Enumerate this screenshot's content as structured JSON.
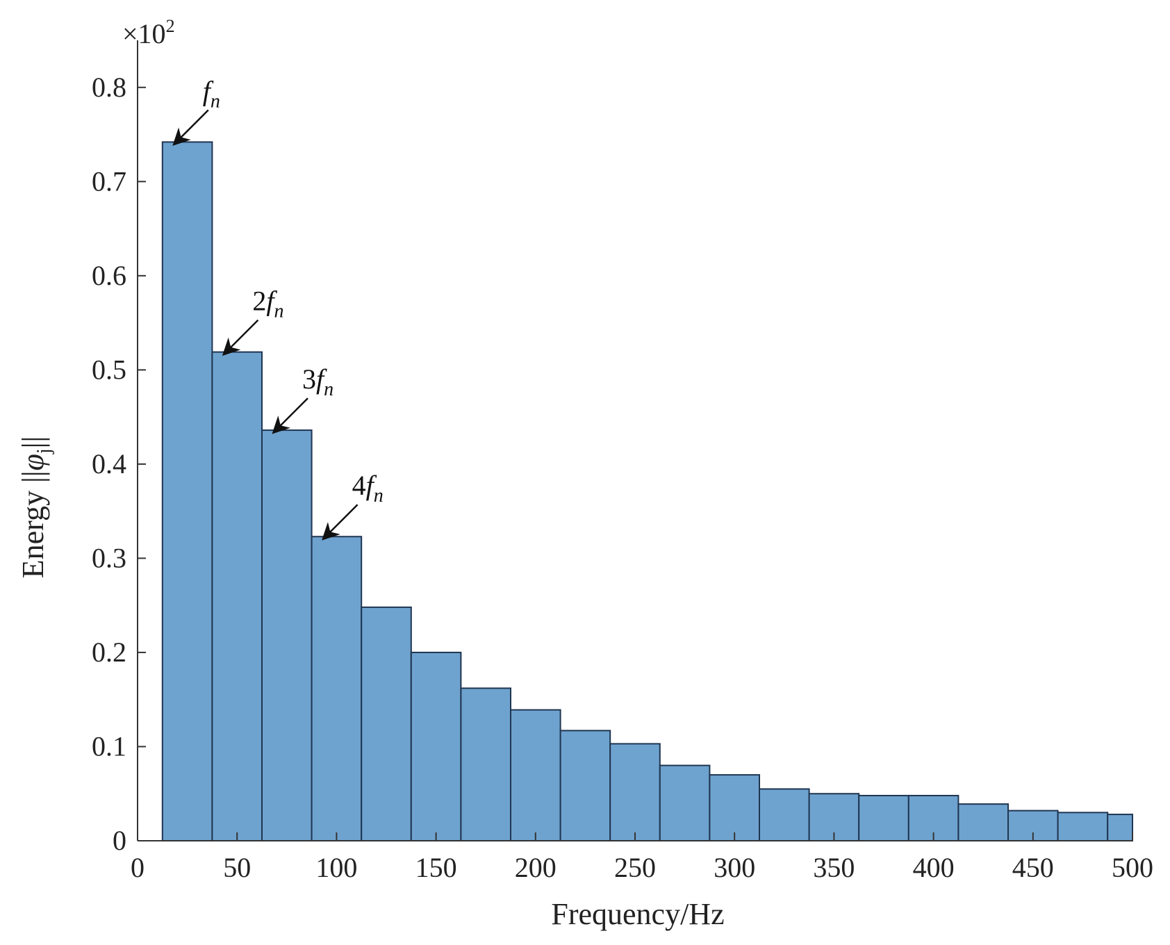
{
  "chart_data": {
    "type": "bar",
    "title": "",
    "xlabel": "Frequency/Hz",
    "ylabel": "Energy ||φ j||",
    "ylabel_main": "Energy ||",
    "ylabel_sym": "φ",
    "ylabel_sub": "j",
    "ylabel_end": "||",
    "multiplier_prefix": "×10",
    "multiplier_exp": "2",
    "xlim": [
      0,
      500
    ],
    "ylim": [
      0,
      0.85
    ],
    "xticks": [
      0,
      50,
      100,
      150,
      200,
      250,
      300,
      350,
      400,
      450,
      500
    ],
    "yticks": [
      0,
      0.1,
      0.2,
      0.3,
      0.4,
      0.5,
      0.6,
      0.7,
      0.8
    ],
    "xtick_labels": [
      "0",
      "50",
      "100",
      "150",
      "200",
      "250",
      "300",
      "350",
      "400",
      "450",
      "500"
    ],
    "ytick_labels": [
      "0",
      "0.1",
      "0.2",
      "0.3",
      "0.4",
      "0.5",
      "0.6",
      "0.7",
      "0.8"
    ],
    "bin_width": 25,
    "bin_centers": [
      25,
      50,
      75,
      100,
      125,
      150,
      175,
      200,
      225,
      250,
      275,
      300,
      325,
      350,
      375,
      400,
      425,
      450,
      475,
      500
    ],
    "values": [
      0.742,
      0.519,
      0.436,
      0.323,
      0.248,
      0.2,
      0.162,
      0.139,
      0.117,
      0.103,
      0.08,
      0.07,
      0.055,
      0.05,
      0.048,
      0.048,
      0.039,
      0.032,
      0.03,
      0.028
    ],
    "bar_color": "#6fa3cf",
    "edge_color": "#1f3550",
    "grid": false,
    "annotations": [
      {
        "prefix": "",
        "italic": "f",
        "sub": "n",
        "bar_index": 0
      },
      {
        "prefix": "2",
        "italic": "f",
        "sub": "n",
        "bar_index": 1
      },
      {
        "prefix": "3",
        "italic": "f",
        "sub": "n",
        "bar_index": 2
      },
      {
        "prefix": "4",
        "italic": "f",
        "sub": "n",
        "bar_index": 3
      }
    ]
  }
}
